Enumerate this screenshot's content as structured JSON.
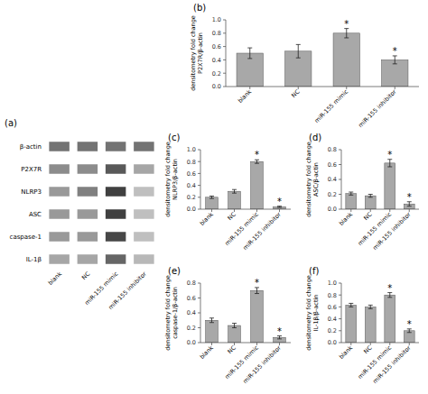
{
  "chart_data": [
    {
      "type": "heatmap",
      "title": "(a)",
      "categories": [
        "blank",
        "NC",
        "miR-155 mimic",
        "miR-155 inhibitor"
      ],
      "rows": [
        "β-actin",
        "P2X7R",
        "NLRP3",
        "ASC",
        "caspase-1",
        "IL-1β"
      ],
      "cells": [
        [
          0.55,
          0.55,
          0.55,
          0.55
        ],
        [
          0.45,
          0.45,
          0.65,
          0.35
        ],
        [
          0.4,
          0.5,
          0.75,
          0.25
        ],
        [
          0.4,
          0.4,
          0.75,
          0.25
        ],
        [
          0.4,
          0.4,
          0.72,
          0.25
        ],
        [
          0.35,
          0.35,
          0.6,
          0.28
        ]
      ]
    },
    {
      "type": "bar",
      "title": "(b)",
      "ylabel": "densitometry fold change\nP2X7R/β-actin",
      "categories": [
        "blank",
        "NC",
        "miR-155 mimic",
        "miR-155 inhibitor"
      ],
      "values": [
        0.5,
        0.53,
        0.8,
        0.4
      ],
      "errors": [
        0.08,
        0.1,
        0.07,
        0.06
      ],
      "annotations": [
        null,
        null,
        "*",
        "*"
      ],
      "color": "#a8a8a8",
      "ylim": [
        0,
        1.0
      ],
      "yticks": [
        {
          "value": 0.0,
          "label": "0.0"
        },
        0.2,
        0.4,
        0.6,
        0.8,
        {
          "value": 1.0,
          "label": "1.0"
        }
      ],
      "grid": false
    },
    {
      "type": "bar",
      "title": "(c)",
      "ylabel": "densitometry fold change\nNLRP3/β-actin",
      "categories": [
        "blank",
        "NC",
        "miR-155 mimic",
        "miR-155 inhibitor"
      ],
      "values": [
        0.2,
        0.3,
        0.8,
        0.04
      ],
      "errors": [
        0.02,
        0.03,
        0.03,
        0.01
      ],
      "annotations": [
        null,
        null,
        "*",
        "*"
      ],
      "color": "#a8a8a8",
      "ylim": [
        0,
        1.0
      ],
      "yticks": [
        {
          "value": 0.0,
          "label": "0.0"
        },
        0.2,
        0.4,
        0.6,
        0.8,
        {
          "value": 1.0,
          "label": "1.0"
        }
      ],
      "grid": false
    },
    {
      "type": "bar",
      "title": "(d)",
      "ylabel": "densitometry fold change\nASC/β-actin",
      "categories": [
        "blank",
        "NC",
        "miR-155 mimic",
        "miR-155 inhibitor"
      ],
      "values": [
        0.21,
        0.18,
        0.62,
        0.07
      ],
      "errors": [
        0.02,
        0.02,
        0.05,
        0.03
      ],
      "annotations": [
        null,
        null,
        "*",
        "*"
      ],
      "color": "#a8a8a8",
      "ylim": [
        0,
        0.8
      ],
      "yticks": [
        {
          "value": 0.0,
          "label": "0.0"
        },
        0.2,
        0.4,
        0.6,
        0.8
      ],
      "grid": false
    },
    {
      "type": "bar",
      "title": "(e)",
      "ylabel": "densitometry fold change\ncaspase-1/β-actin",
      "categories": [
        "blank",
        "NC",
        "miR-155 mimic",
        "miR-155 inhibitor"
      ],
      "values": [
        0.3,
        0.23,
        0.7,
        0.07
      ],
      "errors": [
        0.03,
        0.03,
        0.04,
        0.02
      ],
      "annotations": [
        null,
        null,
        "*",
        "*"
      ],
      "color": "#a8a8a8",
      "ylim": [
        0,
        0.8
      ],
      "yticks": [
        {
          "value": 0.0,
          "label": "0.0"
        },
        0.2,
        0.4,
        0.6,
        0.8
      ],
      "grid": false
    },
    {
      "type": "bar",
      "title": "(f)",
      "ylabel": "densitometry fold change\nIL-1β/β-actin",
      "categories": [
        "blank",
        "NC",
        "miR-155 mimic",
        "miR-155 inhibitor"
      ],
      "values": [
        0.63,
        0.6,
        0.8,
        0.2
      ],
      "errors": [
        0.03,
        0.03,
        0.04,
        0.03
      ],
      "annotations": [
        null,
        null,
        "*",
        "*"
      ],
      "color": "#a8a8a8",
      "ylim": [
        0,
        1.0
      ],
      "yticks": [
        {
          "value": 0.0,
          "label": "0.0"
        },
        0.2,
        0.4,
        0.6,
        0.8,
        {
          "value": 1.0,
          "label": "1.0"
        }
      ],
      "grid": false
    }
  ]
}
